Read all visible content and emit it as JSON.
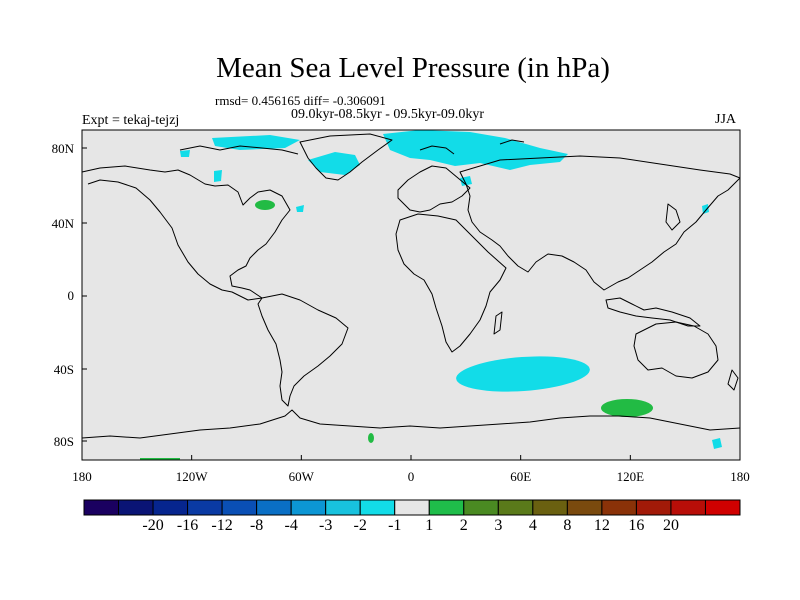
{
  "title": "Mean Sea Level Pressure (in hPa)",
  "stats": "rmsd= 0.456165 diff= -0.306091",
  "periods": "09.0kyr-08.5kyr - 09.5kyr-09.0kyr",
  "expt": "Expt = tekaj-tejzj",
  "season": "JJA",
  "lon_ticks": [
    "180",
    "120W",
    "60W",
    "0",
    "60E",
    "120E",
    "180"
  ],
  "lat_ticks": [
    "80N",
    "40N",
    "0",
    "40S",
    "80S"
  ],
  "colorbar": {
    "colors": [
      "#1a0060",
      "#0a1475",
      "#06258e",
      "#0a3aa3",
      "#0a4fb5",
      "#0a6fc5",
      "#0c96d4",
      "#18c2de",
      "#12dce8",
      "#e6e6e6",
      "#1fbd4a",
      "#4a8a22",
      "#5a7a1a",
      "#6a6010",
      "#7a4a0e",
      "#8a3208",
      "#a21a08",
      "#b80e08",
      "#d00000"
    ],
    "labels": [
      "-20",
      "-16",
      "-12",
      "-8",
      "-4",
      "-3",
      "-2",
      "-1",
      "1",
      "2",
      "3",
      "4",
      "8",
      "12",
      "16",
      "20"
    ]
  },
  "colors": {
    "ocean_bg": "#e6e6e6",
    "neg": "#12dce8",
    "pos": "#22bb44"
  }
}
